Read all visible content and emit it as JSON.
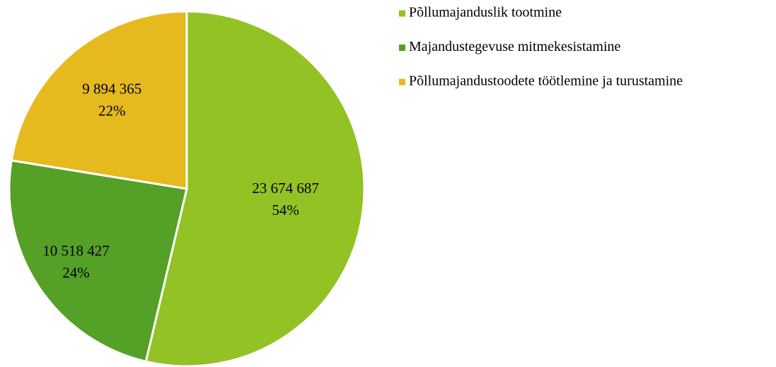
{
  "chart_data": {
    "type": "pie",
    "categories": [
      "Põllumajanduslik tootmine",
      "Majandustegevuse mitmekesistamine",
      "Põllumajandustoodete töötlemine ja turustamine"
    ],
    "values": [
      23674687,
      10518427,
      9894365
    ],
    "value_labels": [
      "23 674 687",
      "10 518 427",
      "9 894 365"
    ],
    "percentages": [
      54,
      24,
      22
    ],
    "percentage_labels": [
      "54%",
      "24%",
      "22%"
    ],
    "colors": [
      "#93c225",
      "#55a026",
      "#e6b91e"
    ],
    "legend": "top-right"
  }
}
